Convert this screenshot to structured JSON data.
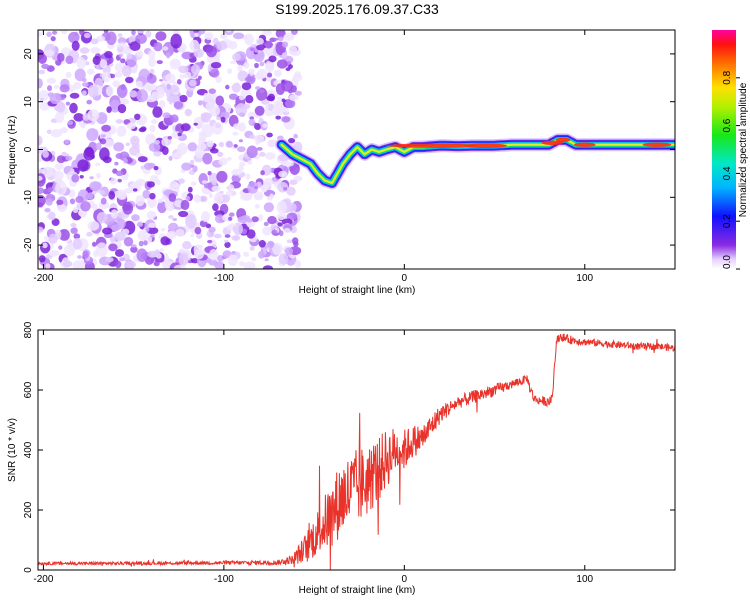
{
  "title": "S199.2025.176.09.37.C33",
  "chart_data": [
    {
      "type": "heatmap",
      "xlabel": "Height of straight line (km)",
      "ylabel": "Frequency (Hz)",
      "xlim": [
        -203,
        150
      ],
      "ylim": [
        -25,
        25
      ],
      "xticks": [
        "-200",
        "-100",
        "0",
        "100"
      ],
      "yticks": [
        "-20",
        "-10",
        "0",
        "10",
        "20"
      ],
      "noise_region_x": [
        -203,
        -62
      ],
      "signal_track": {
        "x": [
          -68,
          -62,
          -57,
          -52,
          -48,
          -44,
          -40,
          -37,
          -34,
          -30,
          -26,
          -22,
          -18,
          -14,
          -10,
          -5,
          0,
          5,
          10,
          20,
          30,
          40,
          50,
          60,
          70,
          80,
          85,
          90,
          95,
          100,
          110,
          120,
          130,
          140,
          150
        ],
        "frequency": [
          1,
          -1,
          -2,
          -3,
          -5,
          -6.5,
          -7,
          -5,
          -3,
          -1,
          0.5,
          -1,
          0,
          -0.5,
          0,
          0.5,
          -0.5,
          0.5,
          0.5,
          0.8,
          0.7,
          0.8,
          0.8,
          1,
          1,
          1,
          2,
          2,
          1,
          1,
          1,
          1,
          1,
          1,
          1
        ]
      },
      "colorbar": {
        "label": "Normalized spectral amplitude",
        "range": [
          0.0,
          1.0
        ],
        "ticks": [
          "0.0",
          "0.2",
          "0.4",
          "0.6",
          "0.8"
        ]
      },
      "grid": false
    },
    {
      "type": "line",
      "xlabel": "Height of straight line (km)",
      "ylabel": "SNR (10 * v/v)",
      "xlim": [
        -203,
        150
      ],
      "ylim": [
        0,
        800
      ],
      "xticks": [
        "-200",
        "-100",
        "0",
        "100"
      ],
      "yticks": [
        "0",
        "200",
        "400",
        "600",
        "800"
      ],
      "series": [
        {
          "color": "#e8322a",
          "x": [
            -203,
            -150,
            -100,
            -70,
            -62,
            -55,
            -50,
            -45,
            -40,
            -35,
            -30,
            -25,
            -20,
            -15,
            -10,
            -5,
            0,
            5,
            10,
            15,
            20,
            25,
            30,
            40,
            50,
            60,
            65,
            68,
            70,
            72,
            75,
            80,
            82,
            84,
            86,
            90,
            100,
            110,
            120,
            130,
            140,
            150
          ],
          "mean": [
            22,
            22,
            24,
            25,
            35,
            70,
            110,
            150,
            190,
            240,
            260,
            280,
            300,
            330,
            370,
            400,
            400,
            430,
            440,
            480,
            520,
            540,
            560,
            580,
            600,
            620,
            630,
            640,
            600,
            570,
            565,
            560,
            570,
            750,
            780,
            770,
            760,
            755,
            750,
            745,
            745,
            740
          ],
          "spread": [
            5,
            5,
            6,
            8,
            15,
            50,
            70,
            90,
            110,
            130,
            130,
            130,
            120,
            110,
            100,
            80,
            70,
            55,
            45,
            40,
            30,
            25,
            22,
            22,
            20,
            15,
            15,
            12,
            20,
            15,
            15,
            15,
            15,
            20,
            15,
            15,
            12,
            12,
            12,
            12,
            12,
            12
          ]
        }
      ],
      "grid": false
    }
  ]
}
